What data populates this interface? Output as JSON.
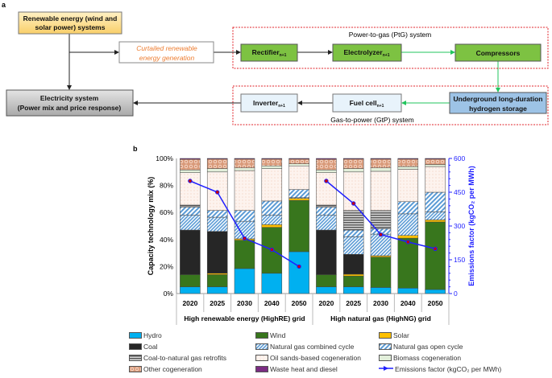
{
  "panel_a": {
    "label": "a",
    "renewable": "Renewable energy (wind and solar power) systems",
    "renewable_lines": [
      "Renewable energy (wind and",
      "solar power) systems"
    ],
    "electricity_lines": [
      "Electricity system",
      "(Power mix and price response)"
    ],
    "curtailed_lines": [
      "Curtailed renewable",
      "energy generation"
    ],
    "ptg_title": "Power-to-gas (PtG) system",
    "gtp_title": "Gas-to-power (GtP) system",
    "rectifier": "Rectifier",
    "electrolyzer": "Electrolyzer",
    "compressors": "Compressors",
    "inverter": "Inverter",
    "fuel_cell": "Fuel cell",
    "subscript": "n+1",
    "storage_lines": [
      "Underground long-duration",
      "hydrogen storage"
    ],
    "colors": {
      "green": "#7dc242",
      "blue": "#9dc3e6",
      "light_blue": "#e8f3fb",
      "dashed_red": "#e0252b",
      "curtailed_text": "#ed7d31",
      "flow_green": "#22c55e"
    }
  },
  "chart_data": {
    "panel_label": "b",
    "type": "bar",
    "stacked": true,
    "ylabel": "Capacity technology mix (%)",
    "y2label": "Emissions factor (kgCO₂ per MWh)",
    "ylim": [
      0,
      100
    ],
    "y2lim": [
      0,
      600
    ],
    "yticks": [
      "0%",
      "20%",
      "40%",
      "60%",
      "80%",
      "100%"
    ],
    "y2ticks": [
      "0",
      "150",
      "300",
      "450",
      "600"
    ],
    "groups": [
      {
        "label": "High renewable energy (HighRE) grid",
        "categories": [
          "2020",
          "2025",
          "2030",
          "2040",
          "2050"
        ]
      },
      {
        "label": "High natural gas (HighNG) grid",
        "categories": [
          "2020",
          "2025",
          "2030",
          "2040",
          "2050"
        ]
      }
    ],
    "series": [
      {
        "name": "Hydro",
        "color": "#00b0f0",
        "pattern": "solid",
        "values": [
          5,
          5,
          18.5,
          15,
          31,
          5,
          5,
          4.5,
          4,
          3
        ]
      },
      {
        "name": "Wind",
        "color": "#38761d",
        "pattern": "solid",
        "values": [
          9,
          9,
          21,
          34,
          38,
          9,
          8,
          22.5,
          37,
          50
        ]
      },
      {
        "name": "Solar",
        "color": "#ffc000",
        "pattern": "solid",
        "values": [
          0,
          1,
          1,
          2,
          1.5,
          0,
          1.3,
          1,
          2,
          1.5
        ]
      },
      {
        "name": "Coal",
        "color": "#262626",
        "pattern": "solid",
        "values": [
          33,
          31,
          0,
          0,
          0,
          33,
          14.7,
          0,
          0,
          0
        ]
      },
      {
        "name": "Natural gas combined cycle",
        "color": "#5b9bd5",
        "pattern": "hatch",
        "values": [
          11,
          10.5,
          13,
          7,
          0.5,
          11,
          13,
          16,
          16,
          6
        ]
      },
      {
        "name": "Natural gas open cycle",
        "color": "#5b9bd5",
        "pattern": "hatch2",
        "values": [
          6,
          5,
          8,
          10.5,
          6,
          6,
          5,
          4,
          9,
          14.5
        ]
      },
      {
        "name": "Coal-to-natural gas retrofits",
        "color": "#7f7f7f",
        "pattern": "hstripe",
        "values": [
          1.5,
          0,
          0,
          0,
          0,
          1.5,
          14.5,
          13.5,
          0,
          0
        ]
      },
      {
        "name": "Oil sands-based cogeneration",
        "color": "#fdf1ea",
        "pattern": "dots",
        "values": [
          24,
          28.5,
          29.5,
          24,
          17.5,
          24,
          28.5,
          29,
          24,
          19
        ]
      },
      {
        "name": "Biomass cogeneration",
        "color": "#e2efda",
        "pattern": "solid",
        "values": [
          2,
          2.5,
          2,
          2,
          1.5,
          2,
          2.5,
          2.5,
          2,
          1.5
        ]
      },
      {
        "name": "Other cogeneration",
        "color": "#e4a98a",
        "pattern": "circles",
        "values": [
          7.9,
          7,
          6.5,
          5,
          3.5,
          7.9,
          7,
          6.5,
          5.5,
          4
        ]
      },
      {
        "name": "Waste heat and diesel",
        "color": "#7b2c83",
        "pattern": "solid",
        "values": [
          0.6,
          0.5,
          0.5,
          0.5,
          0.5,
          0.6,
          0.5,
          0.5,
          0.5,
          0.5
        ]
      }
    ],
    "line_series": {
      "name": "Emissions factor (kgCO₂ per MWh)",
      "color": "#1f1fff",
      "axis": "right",
      "values": [
        500,
        450,
        245,
        195,
        120,
        500,
        400,
        262,
        229,
        199
      ]
    },
    "grid": false,
    "legend_position": "bottom"
  }
}
